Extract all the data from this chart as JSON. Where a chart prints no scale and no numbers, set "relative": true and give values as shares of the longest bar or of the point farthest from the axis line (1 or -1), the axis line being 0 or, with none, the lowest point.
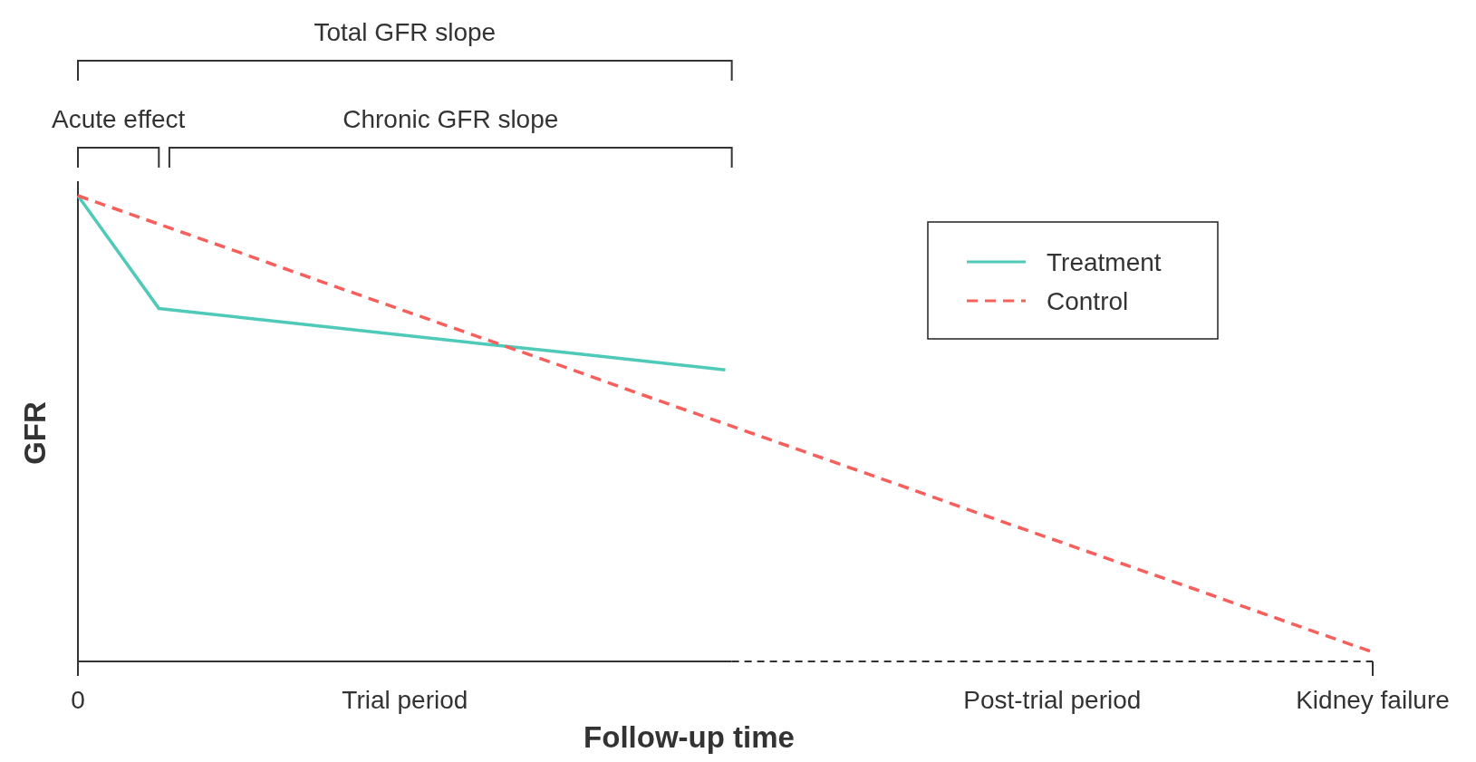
{
  "chart_data": {
    "type": "line",
    "relative": true,
    "xlabel": "Follow-up time",
    "ylabel": "GFR",
    "legend": "top right",
    "categories": [
      "0",
      null,
      null,
      null,
      null,
      null,
      null,
      null,
      null,
      null,
      null,
      null,
      null,
      null,
      null,
      null,
      "Kidney failure"
    ],
    "series": [
      {
        "name": "Treatment",
        "color": "#4fc9b8",
        "line_style": "solid",
        "values": [
          1,
          0.758,
          0.739,
          0.72,
          0.701,
          0.682,
          0.664,
          0.645,
          0.626,
          null,
          null,
          null,
          null,
          null,
          null,
          null,
          null
        ]
      },
      {
        "name": "Control",
        "color": "#f65f5c",
        "line_style": "dashed",
        "values": [
          1,
          0.939,
          0.878,
          0.816,
          0.755,
          0.694,
          0.633,
          0.571,
          0.51,
          0.449,
          0.388,
          0.326,
          0.265,
          0.204,
          0.143,
          0.081,
          0.02
        ]
      }
    ],
    "annotations": [
      "Total GFR slope",
      "Acute effect",
      "Chronic GFR slope",
      "Trial period",
      "Post-trial period"
    ]
  }
}
